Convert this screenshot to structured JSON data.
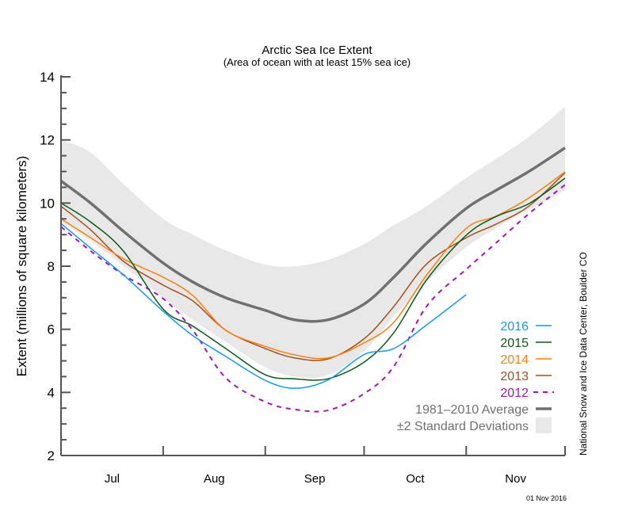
{
  "chart_data": {
    "type": "line",
    "title": "Arctic Sea Ice Extent",
    "subtitle": "(Area of ocean with at least 15% sea ice)",
    "ylabel": "Extent (millions of square kilometers)",
    "xlabel": "",
    "ylim": [
      2,
      14
    ],
    "yticks": [
      "2",
      "4",
      "6",
      "8",
      "10",
      "12",
      "14"
    ],
    "xlim": [
      "2016-07-01",
      "2016-12-01"
    ],
    "xticks": [
      {
        "label": "Jul",
        "start": "2016-07-01",
        "end": "2016-08-01"
      },
      {
        "label": "Aug",
        "start": "2016-08-01",
        "end": "2016-09-01"
      },
      {
        "label": "Sep",
        "start": "2016-09-01",
        "end": "2016-10-01"
      },
      {
        "label": "Oct",
        "start": "2016-10-01",
        "end": "2016-11-01"
      },
      {
        "label": "Nov",
        "start": "2016-11-01",
        "end": "2016-12-01"
      }
    ],
    "grid": false,
    "legend_position": "bottom-right",
    "dates": [
      "07-01",
      "07-10",
      "07-20",
      "08-01",
      "08-10",
      "08-20",
      "09-01",
      "09-10",
      "09-20",
      "10-01",
      "10-10",
      "10-20",
      "11-01",
      "11-10",
      "11-20",
      "12-01"
    ],
    "band": {
      "name": "±2 Standard Deviations",
      "color": "#e8e8e8",
      "upper": [
        12.0,
        11.6,
        10.6,
        9.5,
        9.0,
        8.5,
        8.05,
        8.0,
        8.2,
        8.7,
        9.3,
        9.9,
        10.8,
        11.4,
        12.1,
        13.05
      ],
      "lower": [
        9.4,
        8.8,
        8.0,
        7.0,
        6.3,
        5.6,
        4.8,
        4.5,
        4.55,
        5.3,
        6.4,
        7.5,
        8.6,
        9.2,
        9.8,
        10.4
      ]
    },
    "series": [
      {
        "name": "1981–2010 Average",
        "color": "#707070",
        "style": "thick",
        "values": [
          10.7,
          10.0,
          9.1,
          8.1,
          7.5,
          7.0,
          6.6,
          6.3,
          6.3,
          6.8,
          7.65,
          8.73,
          9.83,
          10.4,
          11.0,
          11.75
        ]
      },
      {
        "name": "2012",
        "color": "#a515b5",
        "style": "dashed",
        "values": [
          9.25,
          8.48,
          7.72,
          6.97,
          5.97,
          4.46,
          3.7,
          3.46,
          3.43,
          3.96,
          4.82,
          6.73,
          7.9,
          8.73,
          9.66,
          10.58
        ]
      },
      {
        "name": "2013",
        "color": "#a5501a",
        "style": "solid",
        "values": [
          9.9,
          9.15,
          8.15,
          7.4,
          6.9,
          5.97,
          5.39,
          5.09,
          5.06,
          5.7,
          6.72,
          8.07,
          8.9,
          9.33,
          9.9,
          10.96
        ]
      },
      {
        "name": "2014",
        "color": "#ff7f0e",
        "style": "solid",
        "values": [
          9.5,
          8.9,
          8.23,
          7.65,
          7.07,
          5.97,
          5.46,
          5.19,
          5.09,
          5.57,
          6.22,
          7.72,
          9.2,
          9.58,
          10.16,
          10.99
        ]
      },
      {
        "name": "2015",
        "color": "#0b5a16",
        "style": "solid",
        "values": [
          10.0,
          9.4,
          8.47,
          6.64,
          6.1,
          5.39,
          4.56,
          4.43,
          4.43,
          4.96,
          5.89,
          7.57,
          8.98,
          9.57,
          9.98,
          10.79
        ]
      },
      {
        "name": "2016",
        "color": "#1599ee",
        "style": "solid",
        "values": [
          9.35,
          8.57,
          7.72,
          6.57,
          5.8,
          5.14,
          4.38,
          4.13,
          4.39,
          5.2,
          5.39,
          6.14,
          7.1,
          null,
          null,
          null
        ]
      }
    ]
  },
  "legend": [
    {
      "label": "2016",
      "color": "#1599ee",
      "style": "solid"
    },
    {
      "label": "2015",
      "color": "#0b5a16",
      "style": "solid"
    },
    {
      "label": "2014",
      "color": "#ff7f0e",
      "style": "solid"
    },
    {
      "label": "2013",
      "color": "#a5501a",
      "style": "solid"
    },
    {
      "label": "2012",
      "color": "#a515b5",
      "style": "dashed"
    },
    {
      "label": "1981–2010 Average",
      "color": "#707070",
      "style": "thick"
    },
    {
      "label": "±2 Standard Deviations",
      "color": "#e8e8e8",
      "style": "box"
    }
  ],
  "credit": "National Snow and Ice Data Center, Boulder CO",
  "date_stamp": "01 Nov 2016"
}
